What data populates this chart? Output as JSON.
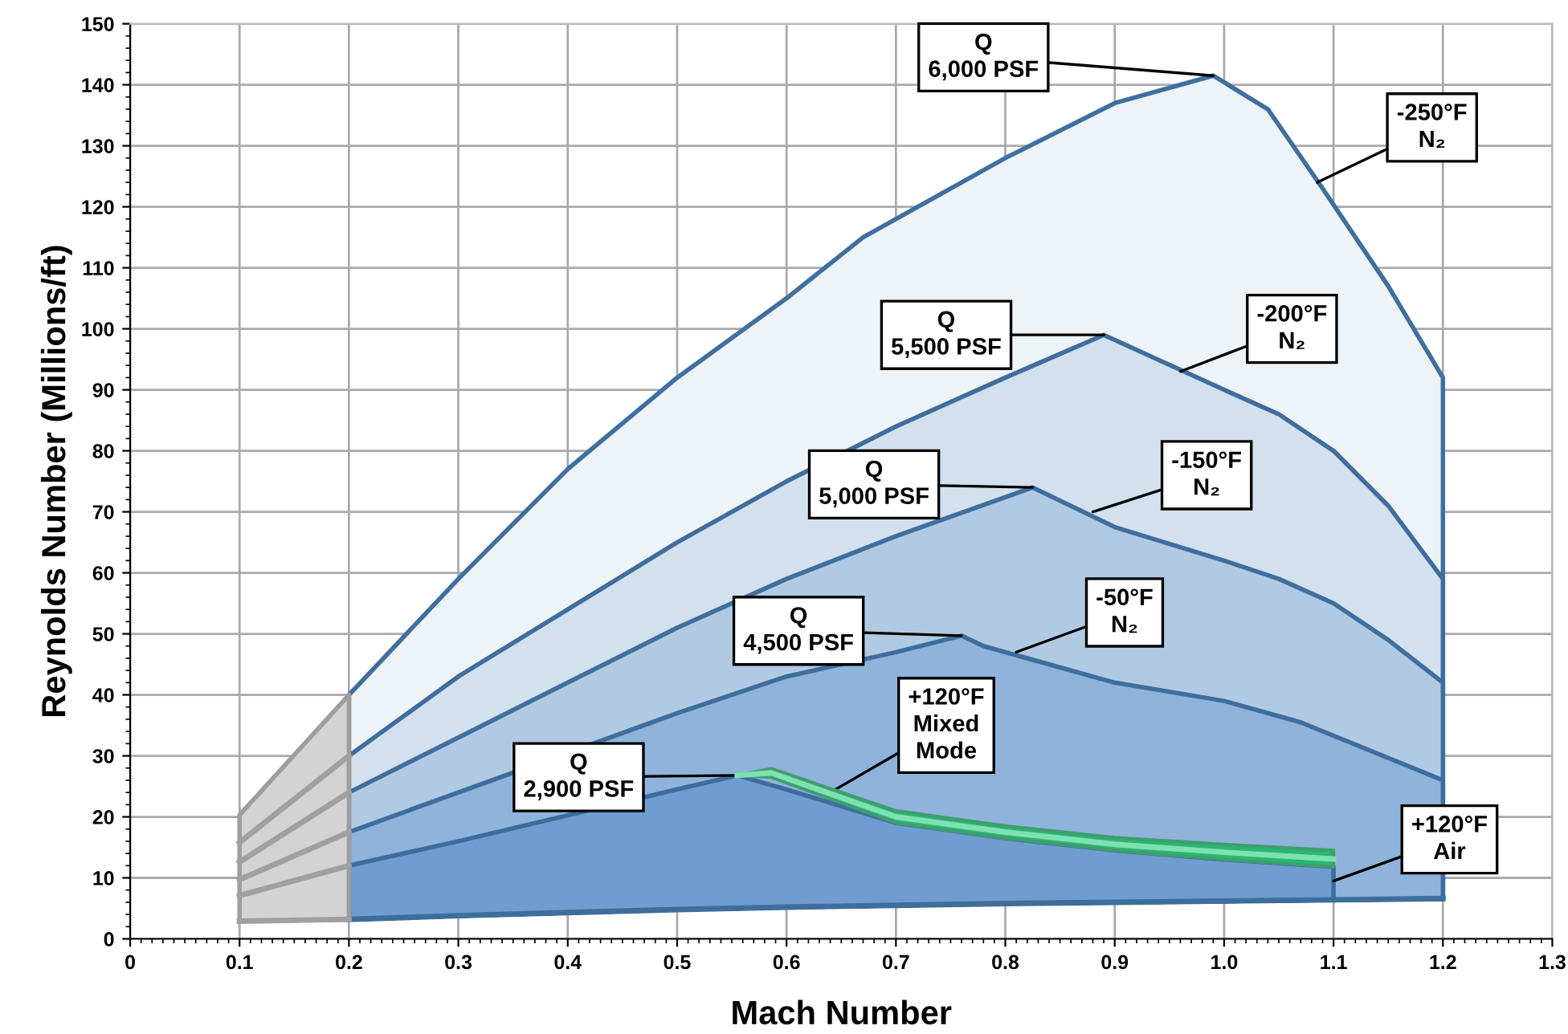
{
  "chart_data": {
    "type": "area",
    "xlabel": "Mach Number",
    "ylabel": "Reynolds Number (Millions/ft)",
    "xlim": [
      0,
      1.3
    ],
    "xticks": [
      0,
      0.1,
      0.2,
      0.3,
      0.4,
      0.5,
      0.6,
      0.7,
      0.8,
      0.9,
      {
        "value": 1.0,
        "label": "1.0"
      },
      1.1,
      1.2,
      1.3
    ],
    "ylim": [
      0,
      150
    ],
    "yticks": [
      0,
      10,
      20,
      30,
      40,
      50,
      60,
      70,
      80,
      90,
      100,
      110,
      120,
      130,
      140,
      150
    ],
    "grid": true,
    "legend": false,
    "line_style": "solid",
    "marker": "none",
    "series": [
      {
        "type": "line",
        "color": "#3e6e9c",
        "x": [
          0.2,
          0.3,
          0.4,
          0.5,
          0.6,
          0.7,
          0.8,
          0.9,
          1.0,
          1.1,
          1.2
        ],
        "values": [
          3.2,
          3.8,
          4.3,
          4.8,
          5.2,
          5.5,
          5.8,
          6.0,
          6.2,
          6.4,
          6.6
        ]
      },
      {
        "color": "#eef3f8",
        "x": [
          0.2,
          0.3,
          0.4,
          0.5,
          0.6,
          0.67,
          0.8,
          0.9,
          0.99,
          1.04,
          1.09,
          1.15,
          1.2
        ],
        "values": [
          40,
          59,
          77,
          92,
          105,
          115,
          128,
          137,
          141.5,
          136,
          123,
          107,
          92
        ]
      },
      {
        "color": "#d3e0ee",
        "x": [
          0.2,
          0.3,
          0.4,
          0.5,
          0.6,
          0.7,
          0.8,
          0.89,
          1.0,
          1.05,
          1.1,
          1.15,
          1.2
        ],
        "values": [
          30,
          43,
          54,
          65,
          75,
          84,
          92,
          99,
          90,
          86,
          80,
          71,
          59
        ]
      },
      {
        "color": "#b1cae3",
        "x": [
          0.2,
          0.3,
          0.4,
          0.5,
          0.6,
          0.7,
          0.825,
          0.9,
          1.0,
          1.05,
          1.1,
          1.15,
          1.2
        ],
        "values": [
          24,
          33,
          42,
          51,
          59,
          66,
          74,
          67.5,
          62,
          59,
          55,
          49,
          42
        ]
      },
      {
        "color": "#8fb3da",
        "x": [
          0.2,
          0.3,
          0.5,
          0.6,
          0.7,
          0.76,
          0.78,
          0.9,
          1.0,
          1.07,
          1.2
        ],
        "values": [
          17.5,
          24,
          37,
          43,
          47,
          49.7,
          48,
          42,
          39,
          35.5,
          26
        ]
      },
      {
        "color": "#6f9dd0",
        "x": [
          0.2,
          0.3,
          0.5,
          0.555,
          0.6,
          0.7,
          0.8,
          0.9,
          1.0,
          1.1
        ],
        "values": [
          12,
          16,
          24.5,
          26.8,
          24.5,
          19,
          16.5,
          14.5,
          13,
          11.8
        ]
      },
      {
        "type": "line",
        "color": "#7fe0b0",
        "x": [
          0.555,
          0.586,
          0.7,
          0.8,
          0.9,
          1.0,
          1.1
        ],
        "values": [
          26.8,
          27.2,
          20,
          17.5,
          15.5,
          14.2,
          13.1
        ],
        "lower": [
          26.8,
          26.5,
          19,
          16.5,
          14.5,
          13,
          11.8
        ],
        "upper": [
          26.8,
          27.9,
          21,
          18.5,
          16.6,
          15.5,
          14.5
        ]
      },
      {
        "type": "line",
        "color": "#a0a0a0",
        "x": [
          0.1,
          0.2
        ],
        "values": [
          2.9,
          3.2
        ]
      },
      {
        "color": "#d3d3d3",
        "x": [
          0.1,
          0.2
        ],
        "values": [
          20.3,
          40
        ]
      },
      {
        "type": "line",
        "color": "#a0a0a0",
        "x": [
          0.1,
          0.2
        ],
        "values": [
          15.8,
          30
        ]
      },
      {
        "type": "line",
        "color": "#a0a0a0",
        "x": [
          0.1,
          0.2
        ],
        "values": [
          12.6,
          24
        ]
      },
      {
        "type": "line",
        "color": "#a0a0a0",
        "x": [
          0.1,
          0.2
        ],
        "values": [
          9.7,
          17.5
        ]
      },
      {
        "type": "line",
        "color": "#a0a0a0",
        "x": [
          0.1,
          0.2
        ],
        "values": [
          7.1,
          12
        ]
      }
    ],
    "annotations": [
      {
        "text": "Q\n6,000 PSF",
        "x": 0.99,
        "y": 141.5
      },
      {
        "text": "-250°F\nN₂",
        "x": 1.085,
        "y": 124
      },
      {
        "text": "Q\n5,500 PSF",
        "x": 0.89,
        "y": 99
      },
      {
        "text": "-200°F\nN₂",
        "x": 0.96,
        "y": 93
      },
      {
        "text": "Q\n5,000 PSF",
        "x": 0.825,
        "y": 74
      },
      {
        "text": "-150°F\nN₂",
        "x": 0.88,
        "y": 70
      },
      {
        "text": "Q\n4,500 PSF",
        "x": 0.76,
        "y": 49.7
      },
      {
        "text": "-50°F\nN₂",
        "x": 0.81,
        "y": 47
      },
      {
        "text": "+120°F\nMixed\nMode",
        "x": 0.64,
        "y": 24
      },
      {
        "text": "Q\n2,900 PSF",
        "x": 0.555,
        "y": 26.8
      },
      {
        "text": "+120°F\nAir",
        "x": 1.1,
        "y": 9.5
      }
    ]
  }
}
